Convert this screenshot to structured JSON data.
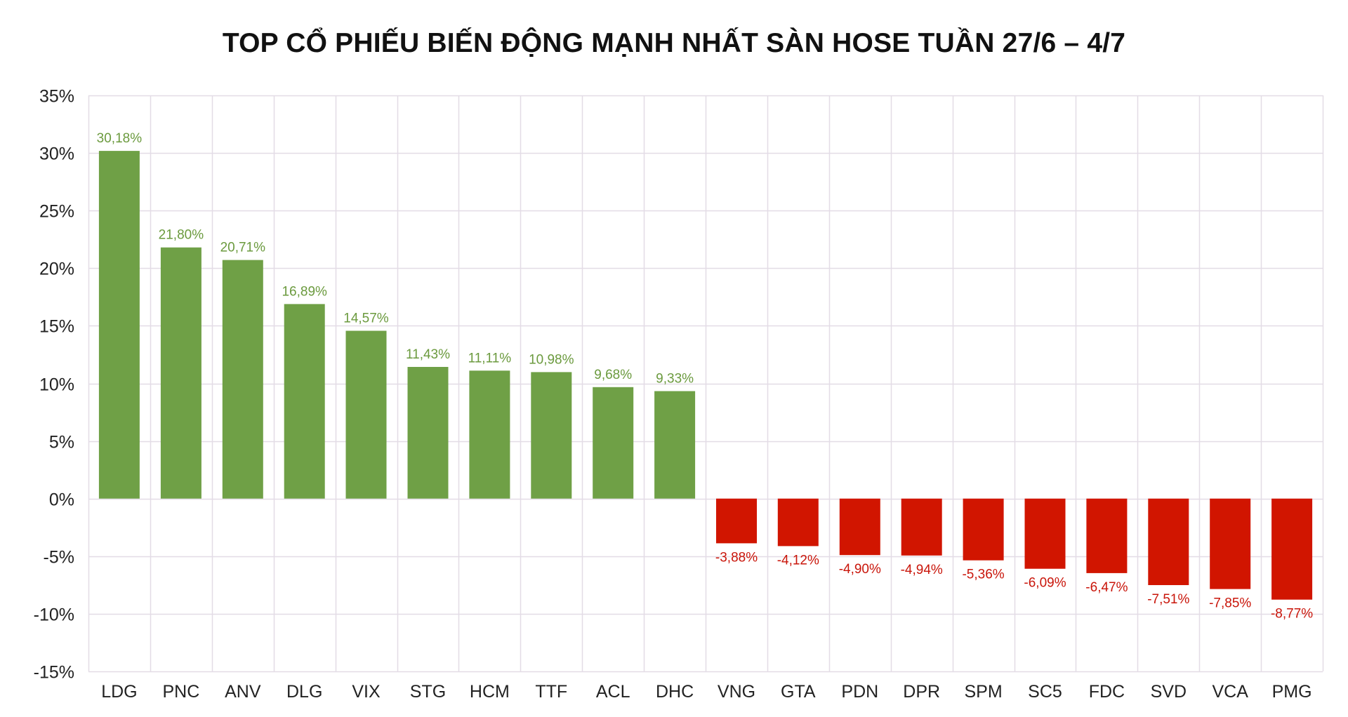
{
  "chart_data": {
    "type": "bar",
    "title": "TOP CỔ PHIẾU BIẾN ĐỘNG MẠNH NHẤT SÀN HOSE TUẦN 27/6 – 4/7",
    "xlabel": "",
    "ylabel": "",
    "ylim": [
      -15,
      35
    ],
    "y_ticks": [
      35,
      30,
      25,
      20,
      15,
      10,
      5,
      0,
      -5,
      -10,
      -15
    ],
    "y_tick_labels": [
      "35%",
      "30%",
      "25%",
      "20%",
      "15%",
      "10%",
      "5%",
      "0%",
      "-5%",
      "-10%",
      "-15%"
    ],
    "grid": true,
    "legend": "none",
    "categories": [
      "LDG",
      "PNC",
      "ANV",
      "DLG",
      "VIX",
      "STG",
      "HCM",
      "TTF",
      "ACL",
      "DHC",
      "VNG",
      "GTA",
      "PDN",
      "DPR",
      "SPM",
      "SC5",
      "FDC",
      "SVD",
      "VCA",
      "PMG"
    ],
    "values": [
      30.18,
      21.8,
      20.71,
      16.89,
      14.57,
      11.43,
      11.11,
      10.98,
      9.68,
      9.33,
      -3.88,
      -4.12,
      -4.9,
      -4.94,
      -5.36,
      -6.09,
      -6.47,
      -7.51,
      -7.85,
      -8.77
    ],
    "data_labels": [
      "30,18%",
      "21,80%",
      "20,71%",
      "16,89%",
      "14,57%",
      "11,43%",
      "11,11%",
      "10,98%",
      "9,68%",
      "9,33%",
      "-3,88%",
      "-4,12%",
      "-4,90%",
      "-4,94%",
      "-5,36%",
      "-6,09%",
      "-6,47%",
      "-7,51%",
      "-7,85%",
      "-8,77%"
    ],
    "colors": {
      "positive_bar": "#6fa046",
      "negative_bar": "#d11500",
      "positive_label": "#6b9a3e",
      "negative_label": "#c9150a",
      "grid": "#e3dce6",
      "text": "#222222"
    }
  }
}
